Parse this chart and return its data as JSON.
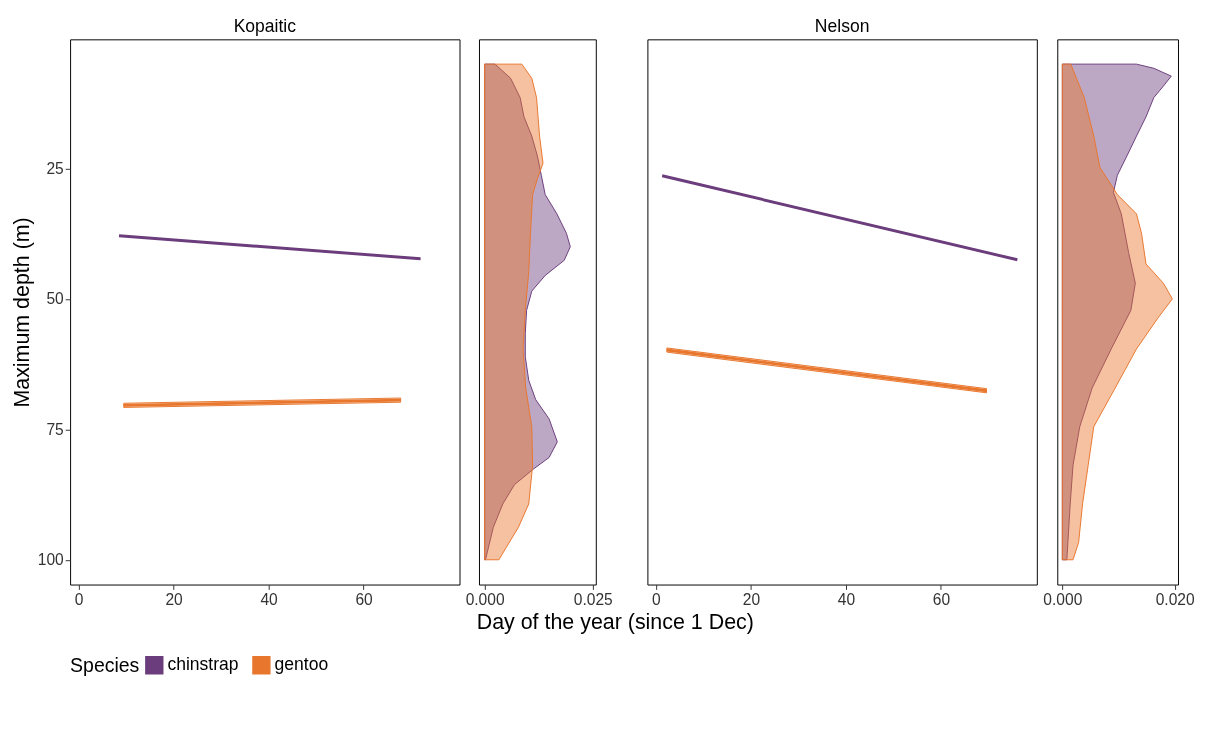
{
  "chart_data": [
    {
      "type": "line",
      "title": "Kopaitic",
      "xlabel": "Day of the year (since 1 Dec)",
      "ylabel": "Maximum depth (m)",
      "legend_title": "Species",
      "legend": "bottom",
      "xlim": [
        -1.8,
        80.2
      ],
      "xticks": [
        0,
        20,
        40,
        60
      ],
      "ylim": [
        104.75,
        0.25
      ],
      "yticks": [
        25,
        50,
        75,
        100
      ],
      "series": [
        {
          "name": "chinstrap",
          "color": "#6b3d7c",
          "x": [
            8.5,
            72
          ],
          "values": [
            37.9,
            42.3
          ]
        },
        {
          "name": "gentoo",
          "color": "#e8762d",
          "x": [
            9.5,
            67.8
          ],
          "values": [
            70.4,
            69.4
          ],
          "lower": [
            70.0,
            69.0
          ],
          "upper": [
            70.8,
            69.8
          ]
        }
      ]
    },
    {
      "type": "area",
      "orientation": "horizontal",
      "tick_labels": "x",
      "xlim": [
        -0.0013,
        0.0257
      ],
      "xticks": [
        {
          "value": 0,
          "label": "0.000"
        },
        {
          "value": 0.025,
          "label": "0.025"
        }
      ],
      "ylim": [
        104.75,
        0.25
      ],
      "series": [
        {
          "name": "chinstrap",
          "color": "#6b3d7c",
          "x": [
            5,
            7.7,
            11.4,
            15.1,
            18.8,
            22.6,
            26.3,
            30.0,
            33.7,
            37.4,
            40.0,
            42.6,
            45.5,
            48.5,
            52.2,
            56.7,
            61.1,
            65.6,
            69.3,
            73.0,
            77.4,
            80.4,
            82.6,
            85.6,
            89.3,
            93.8,
            100
          ],
          "values": [
            0.0024,
            0.006,
            0.0082,
            0.0091,
            0.0109,
            0.0122,
            0.0131,
            0.014,
            0.0167,
            0.0189,
            0.0198,
            0.0184,
            0.014,
            0.0109,
            0.0097,
            0.0094,
            0.0094,
            0.0102,
            0.0118,
            0.0149,
            0.0168,
            0.0149,
            0.0113,
            0.0069,
            0.0042,
            0.002,
            0.0002
          ]
        },
        {
          "name": "gentoo",
          "color": "#e8762d",
          "x": [
            5,
            7.7,
            11.4,
            18.8,
            24.0,
            27.0,
            30.0,
            37.4,
            44.8,
            52.2,
            59.6,
            67.1,
            74.5,
            81.9,
            89.3,
            93.8,
            97.5,
            100
          ],
          "values": [
            0.0086,
            0.0109,
            0.012,
            0.0127,
            0.0135,
            0.0122,
            0.0111,
            0.0106,
            0.0102,
            0.0094,
            0.0089,
            0.0095,
            0.0109,
            0.0111,
            0.0102,
            0.0078,
            0.0051,
            0.0033
          ]
        }
      ]
    },
    {
      "type": "line",
      "title": "Nelson",
      "tick_labels": "x",
      "xlim": [
        -1.8,
        80.2
      ],
      "xticks": [
        0,
        20,
        40,
        60
      ],
      "ylim": [
        104.75,
        0.25
      ],
      "series": [
        {
          "name": "chinstrap",
          "color": "#6b3d7c",
          "x": [
            1.3,
            76.1
          ],
          "values": [
            26.4,
            42.5
          ]
        },
        {
          "name": "gentoo",
          "color": "#e8762d",
          "x": [
            2.3,
            69.6
          ],
          "values": [
            59.8,
            67.6
          ],
          "lower": [
            59.4,
            67.2
          ],
          "upper": [
            60.2,
            68.0
          ]
        }
      ]
    },
    {
      "type": "area",
      "orientation": "horizontal",
      "tick_labels": "x",
      "xlim": [
        -0.0009,
        0.0206
      ],
      "xticks": [
        {
          "value": 0,
          "label": "0.000"
        },
        {
          "value": 0.02,
          "label": "0.020"
        }
      ],
      "ylim": [
        104.75,
        0.25
      ],
      "series": [
        {
          "name": "chinstrap",
          "color": "#6b3d7c",
          "x": [
            5,
            5.8,
            7.3,
            9.2,
            11.4,
            15.1,
            18.8,
            22.6,
            26.3,
            29.6,
            33.7,
            41.1,
            47.0,
            52.2,
            59.6,
            67.1,
            74.5,
            81.9,
            89.3,
            100
          ],
          "values": [
            0.0132,
            0.0163,
            0.0194,
            0.018,
            0.0163,
            0.0149,
            0.0132,
            0.0115,
            0.0098,
            0.0091,
            0.0105,
            0.0118,
            0.013,
            0.0122,
            0.0087,
            0.0053,
            0.0031,
            0.0019,
            0.0014,
            0.0008
          ]
        },
        {
          "name": "gentoo",
          "color": "#e8762d",
          "x": [
            5,
            11.4,
            18.8,
            24.8,
            30.0,
            33.7,
            37.4,
            43.3,
            47.0,
            50.0,
            53.7,
            59.6,
            67.1,
            74.5,
            81.9,
            89.3,
            96.7,
            100
          ],
          "values": [
            0.0015,
            0.0039,
            0.0056,
            0.0067,
            0.0098,
            0.0132,
            0.0141,
            0.0149,
            0.018,
            0.0196,
            0.017,
            0.0132,
            0.0094,
            0.0056,
            0.0046,
            0.0036,
            0.0029,
            0.0019
          ]
        }
      ]
    }
  ]
}
